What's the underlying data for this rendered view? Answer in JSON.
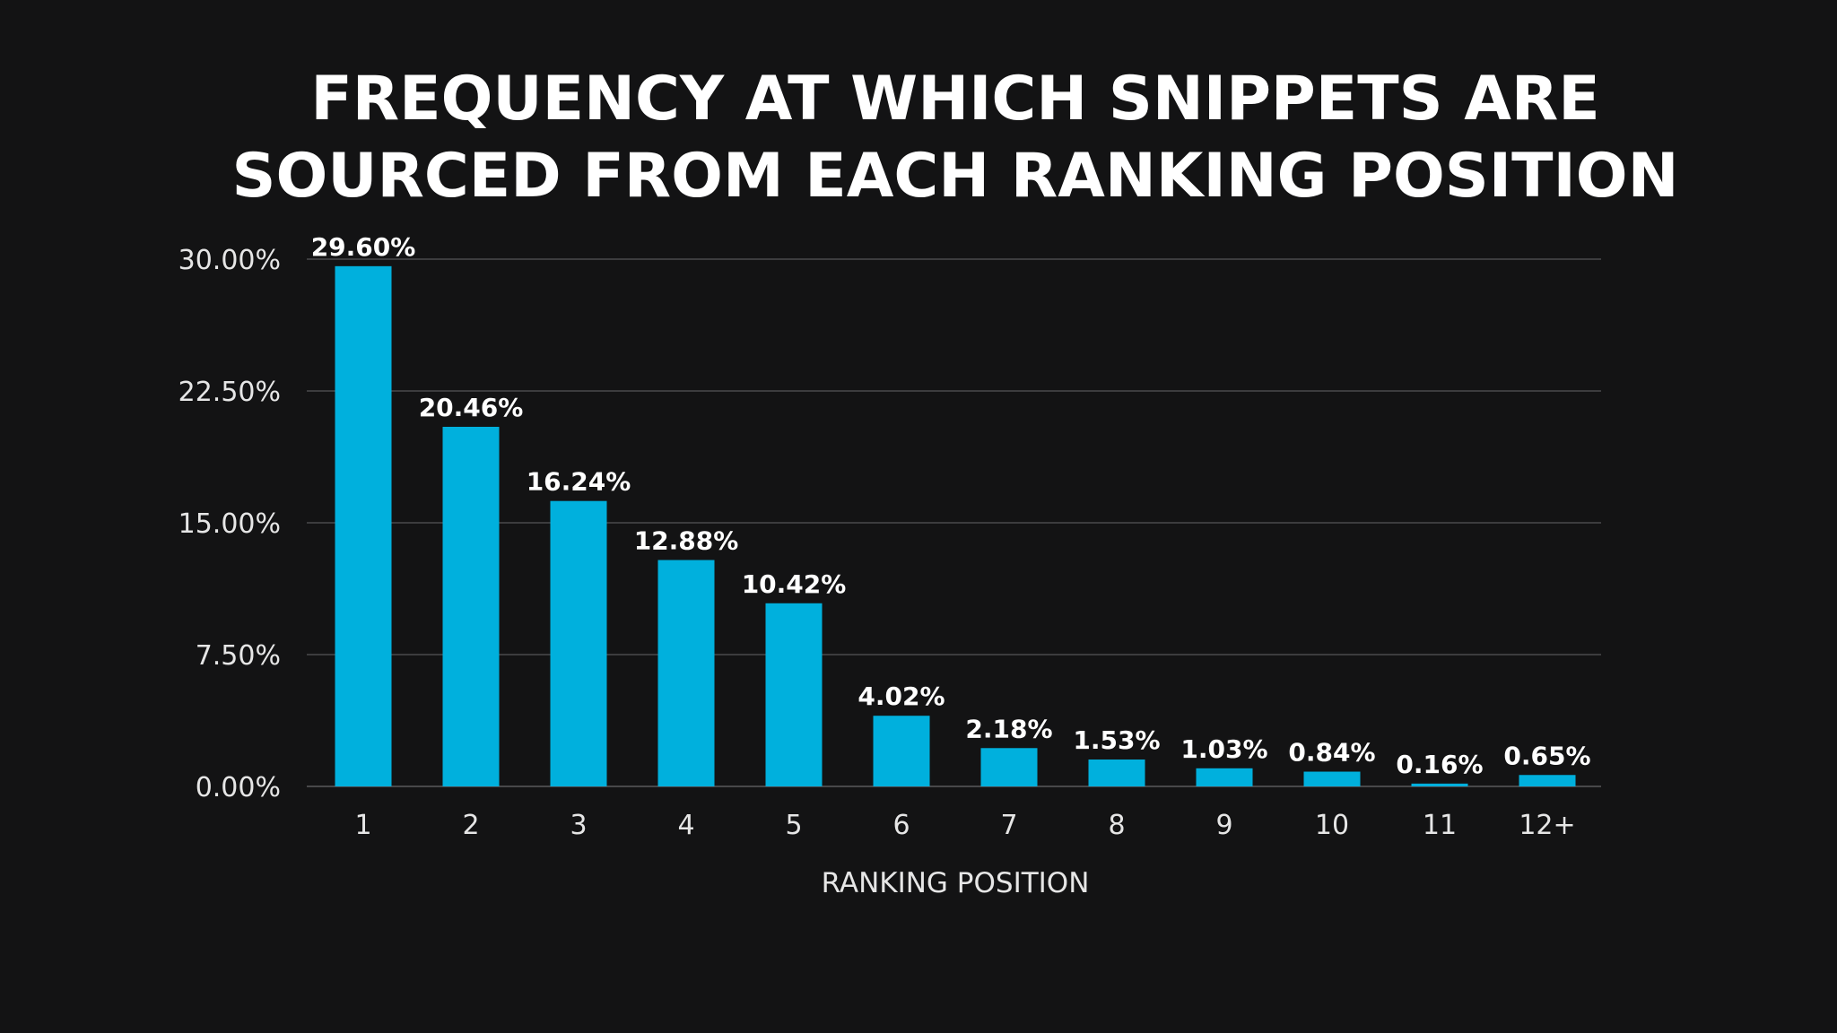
{
  "chart_data": {
    "type": "bar",
    "title_lines": [
      "FREQUENCY AT WHICH SNIPPETS ARE",
      "SOURCED FROM EACH RANKING POSITION"
    ],
    "categories": [
      "1",
      "2",
      "3",
      "4",
      "5",
      "6",
      "7",
      "8",
      "9",
      "10",
      "11",
      "12+"
    ],
    "values": [
      29.6,
      20.46,
      16.24,
      12.88,
      10.42,
      4.02,
      2.18,
      1.53,
      1.03,
      0.84,
      0.16,
      0.65
    ],
    "data_labels": [
      "29.60%",
      "20.46%",
      "16.24%",
      "12.88%",
      "10.42%",
      "4.02%",
      "2.18%",
      "1.53%",
      "1.03%",
      "0.84%",
      "0.16%",
      "0.65%"
    ],
    "xlabel": "RANKING POSITION",
    "ylabel": "",
    "ylim": [
      0,
      30
    ],
    "yticks": [
      0,
      7.5,
      15,
      22.5,
      30
    ],
    "ytick_labels": [
      "0.00%",
      "7.50%",
      "15.00%",
      "22.50%",
      "30.00%"
    ],
    "grid": true,
    "legend": "none",
    "colors": {
      "background": "#131314",
      "bar": "#00b0dd",
      "grid": "#4a4a4c",
      "text": "#ffffff"
    }
  }
}
